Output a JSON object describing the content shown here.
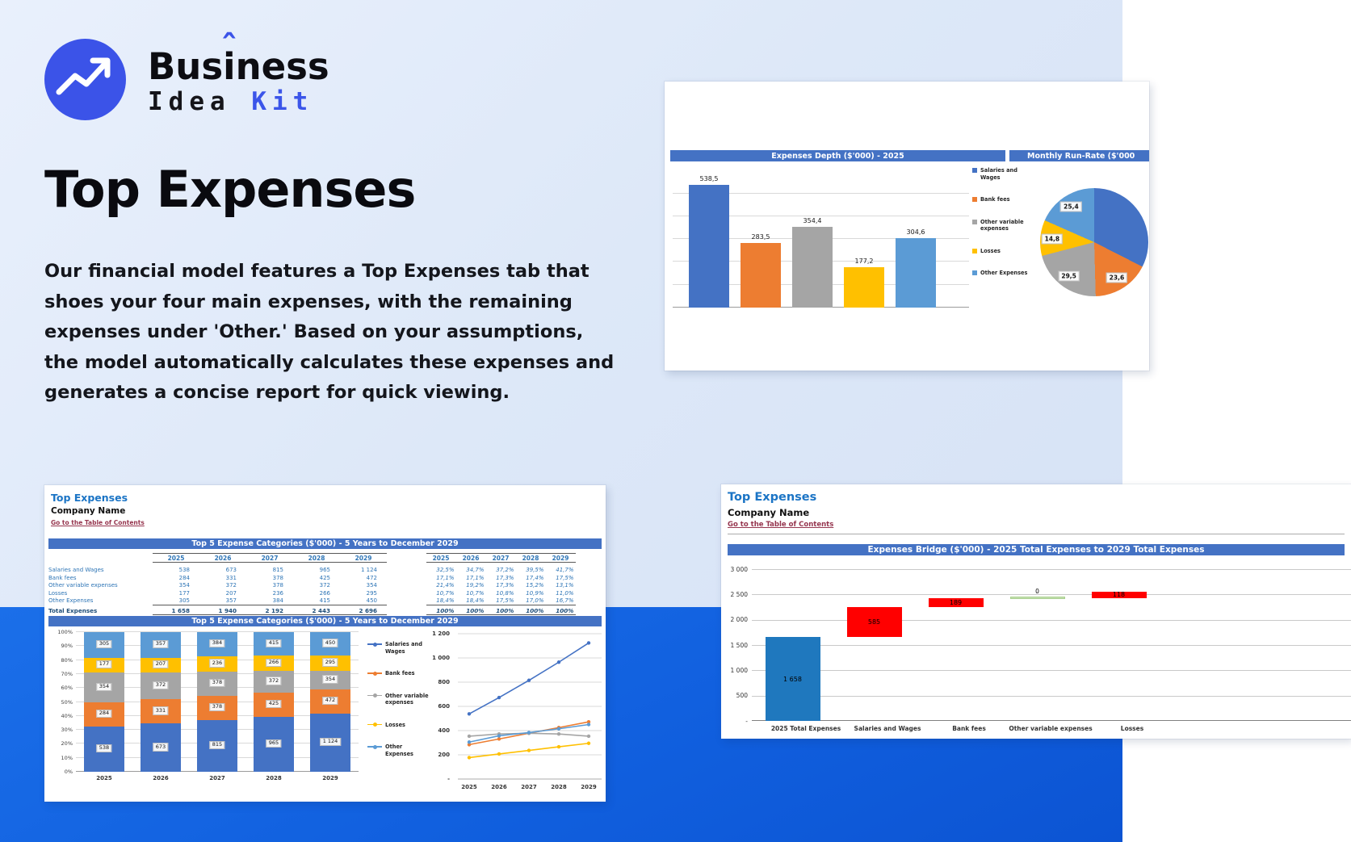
{
  "brand": {
    "name_start": "Bus",
    "name_letter": "i",
    "name_hat": "ˆ",
    "name_end": "ness",
    "sub_dark": "Idea",
    "sub_accent": "Kit"
  },
  "hero": {
    "title": "Top Expenses",
    "description": "Our financial model features a Top Expenses tab that shoes your four main expenses, with the remaining expenses under 'Other.' Based on your assumptions, the model automatically calculates these expenses and generates a concise report for quick viewing."
  },
  "colors": {
    "accent_blue": "#3b53e8",
    "band_blue": "#1160df",
    "header_bar_blue": "#4472C4",
    "sheet_title_blue": "#1b74c5",
    "table_text_blue": "#2E75B6",
    "link_maroon": "#96364f",
    "excel_palette": [
      "#4472C4",
      "#ED7D31",
      "#A5A5A5",
      "#FFC000",
      "#5B9BD5"
    ],
    "bridge_blue": "#1F78BE",
    "bridge_red": "#FF0000",
    "bridge_green": "#C6E0B4"
  },
  "sheet_left": {
    "title": "Top Expenses",
    "company": "Company Name",
    "link": "Go to the Table of Contents",
    "table_header": "Top 5 Expense Categories ($'000) - 5 Years to December 2029",
    "chart_header": "Top 5 Expense Categories ($'000) - 5 Years to December 2029",
    "years": [
      "2025",
      "2026",
      "2027",
      "2028",
      "2029"
    ],
    "rows": [
      {
        "label": "Salaries and Wages",
        "values": [
          "538",
          "673",
          "815",
          "965",
          "1 124"
        ],
        "pcts": [
          "32,5%",
          "34,7%",
          "37,2%",
          "39,5%",
          "41,7%"
        ]
      },
      {
        "label": "Bank fees",
        "values": [
          "284",
          "331",
          "378",
          "425",
          "472"
        ],
        "pcts": [
          "17,1%",
          "17,1%",
          "17,3%",
          "17,4%",
          "17,5%"
        ]
      },
      {
        "label": "Other variable expenses",
        "values": [
          "354",
          "372",
          "378",
          "372",
          "354"
        ],
        "pcts": [
          "21,4%",
          "19,2%",
          "17,3%",
          "15,2%",
          "13,1%"
        ]
      },
      {
        "label": "Losses",
        "values": [
          "177",
          "207",
          "236",
          "266",
          "295"
        ],
        "pcts": [
          "10,7%",
          "10,7%",
          "10,8%",
          "10,9%",
          "11,0%"
        ]
      },
      {
        "label": "Other Expenses",
        "values": [
          "305",
          "357",
          "384",
          "415",
          "450"
        ],
        "pcts": [
          "18,4%",
          "18,4%",
          "17,5%",
          "17,0%",
          "16,7%"
        ]
      }
    ],
    "total": {
      "label": "Total Expenses",
      "values": [
        "1 658",
        "1 940",
        "2 192",
        "2 443",
        "2 696"
      ],
      "pcts": [
        "100%",
        "100%",
        "100%",
        "100%",
        "100%"
      ]
    }
  },
  "sheet_right": {
    "title": "Top Expenses",
    "company": "Company Name",
    "link": "Go to the Table of Contents"
  },
  "chart_data": [
    {
      "id": "expenses-depth",
      "type": "bar",
      "title": "Expenses Depth ($'000) - 2025",
      "categories": [
        "Salaries and Wages",
        "Bank fees",
        "Other variable expenses",
        "Losses",
        "Other Expenses"
      ],
      "values": [
        538.5,
        283.5,
        354.4,
        177.2,
        304.6
      ],
      "data_labels": [
        "538,5",
        "283,5",
        "354,4",
        "177,2",
        "304,6"
      ],
      "colors": [
        "#4472C4",
        "#ED7D31",
        "#A5A5A5",
        "#FFC000",
        "#5B9BD5"
      ],
      "ylim": [
        0,
        600
      ],
      "grid_step": 100,
      "gridlines": true,
      "legend_position": "right"
    },
    {
      "id": "monthly-run-rate",
      "type": "pie",
      "title": "Monthly Run-Rate ($'000",
      "labels": [
        "Salaries and Wages",
        "Bank fees",
        "Other variable expenses",
        "Losses",
        "Other Expenses"
      ],
      "values": [
        44.9,
        23.6,
        29.5,
        14.8,
        25.4
      ],
      "data_labels": [
        "",
        "23,6",
        "29,5",
        "14,8",
        "25,4"
      ],
      "colors": [
        "#4472C4",
        "#ED7D31",
        "#A5A5A5",
        "#FFC000",
        "#5B9BD5"
      ]
    },
    {
      "id": "top5-stacked",
      "type": "bar",
      "stacked": "percent",
      "title": "Top 5 Expense Categories ($'000) - 5 Years to December 2029",
      "categories": [
        "2025",
        "2026",
        "2027",
        "2028",
        "2029"
      ],
      "yticks_pct": [
        "0%",
        "10%",
        "20%",
        "30%",
        "40%",
        "50%",
        "60%",
        "70%",
        "80%",
        "90%",
        "100%"
      ],
      "series": [
        {
          "name": "Salaries and Wages",
          "values": [
            538,
            673,
            815,
            965,
            1124
          ],
          "labels": [
            "538",
            "673",
            "815",
            "965",
            "1 124"
          ],
          "pct": [
            32.5,
            34.7,
            37.2,
            39.5,
            41.7
          ]
        },
        {
          "name": "Bank fees",
          "values": [
            284,
            331,
            378,
            425,
            472
          ],
          "labels": [
            "284",
            "331",
            "378",
            "425",
            "472"
          ],
          "pct": [
            17.1,
            17.1,
            17.3,
            17.4,
            17.5
          ]
        },
        {
          "name": "Other variable expenses",
          "values": [
            354,
            372,
            378,
            372,
            354
          ],
          "labels": [
            "354",
            "372",
            "378",
            "372",
            "354"
          ],
          "pct": [
            21.4,
            19.2,
            17.3,
            15.2,
            13.1
          ]
        },
        {
          "name": "Losses",
          "values": [
            177,
            207,
            236,
            266,
            295
          ],
          "labels": [
            "177",
            "207",
            "236",
            "266",
            "295"
          ],
          "pct": [
            10.7,
            10.7,
            10.8,
            10.9,
            11.0
          ]
        },
        {
          "name": "Other Expenses",
          "values": [
            305,
            357,
            384,
            415,
            450
          ],
          "labels": [
            "305",
            "357",
            "384",
            "415",
            "450"
          ],
          "pct": [
            18.4,
            18.4,
            17.5,
            17.0,
            16.7
          ]
        }
      ]
    },
    {
      "id": "top5-lines",
      "type": "line",
      "x": [
        "2025",
        "2026",
        "2027",
        "2028",
        "2029"
      ],
      "ylim": [
        0,
        1200
      ],
      "yticks": [
        "-",
        "200",
        "400",
        "600",
        "800",
        "1 000",
        "1 200"
      ],
      "series": [
        {
          "name": "Salaries and Wages",
          "values": [
            538,
            673,
            815,
            965,
            1124
          ]
        },
        {
          "name": "Bank fees",
          "values": [
            284,
            331,
            378,
            425,
            472
          ]
        },
        {
          "name": "Other variable expenses",
          "values": [
            354,
            372,
            378,
            372,
            354
          ]
        },
        {
          "name": "Losses",
          "values": [
            177,
            207,
            236,
            266,
            295
          ]
        },
        {
          "name": "Other Expenses",
          "values": [
            305,
            357,
            384,
            415,
            450
          ]
        }
      ]
    },
    {
      "id": "expenses-bridge",
      "type": "waterfall",
      "title": "Expenses Bridge ($'000) - 2025 Total Expenses to 2029 Total Expenses",
      "ylim": [
        0,
        3000
      ],
      "yticks": [
        "-",
        "500",
        "1 000",
        "1 500",
        "2 000",
        "2 500",
        "3 000"
      ],
      "steps": [
        {
          "label": "2025 Total Expenses",
          "start": 0,
          "end": 1658,
          "data_label": "1 658",
          "kind": "total"
        },
        {
          "label": "Salaries and Wages",
          "start": 1658,
          "end": 2243,
          "data_label": "585",
          "kind": "increase"
        },
        {
          "label": "Bank fees",
          "start": 2243,
          "end": 2432,
          "data_label": "189",
          "kind": "increase"
        },
        {
          "label": "Other variable expenses",
          "start": 2432,
          "end": 2432,
          "data_label": "0",
          "kind": "flat"
        },
        {
          "label": "Losses",
          "start": 2432,
          "end": 2550,
          "data_label": "118",
          "kind": "increase"
        }
      ]
    }
  ]
}
